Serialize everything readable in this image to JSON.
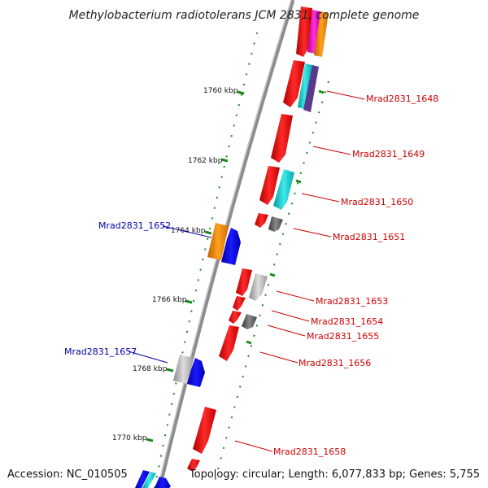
{
  "title": "Methylobacterium radiotolerans JCM 2831, complete genome",
  "footer": {
    "accession": "Accession: NC_010505",
    "topology": "Topology: circular; Length: 6,077,833 bp; Genes: 5,755"
  },
  "ticks": [
    "1760 kbp",
    "1762 kbp",
    "1764 kbp",
    "1766 kbp",
    "1768 kbp",
    "1770 kbp"
  ],
  "gene_labels": {
    "forward": [
      "Mrad2831_1648",
      "Mrad2831_1649",
      "Mrad2831_1650",
      "Mrad2831_1651",
      "Mrad2831_1653",
      "Mrad2831_1654",
      "Mrad2831_1655",
      "Mrad2831_1656",
      "Mrad2831_1658"
    ],
    "reverse": [
      "Mrad2831_1652",
      "Mrad2831_1657"
    ]
  },
  "colors": {
    "backbone": "#8c8c8c",
    "tick": "#1a8a1a",
    "gene_red": "#ff0000",
    "gene_blue": "#0000ff",
    "gene_orange": "#ff9900",
    "gene_cyan": "#00cccc",
    "gene_gray": "#999999",
    "gene_darkgray": "#555555",
    "gene_magenta": "#ff00cc",
    "label_forward": "#cc0000",
    "label_reverse": "#0000aa"
  }
}
